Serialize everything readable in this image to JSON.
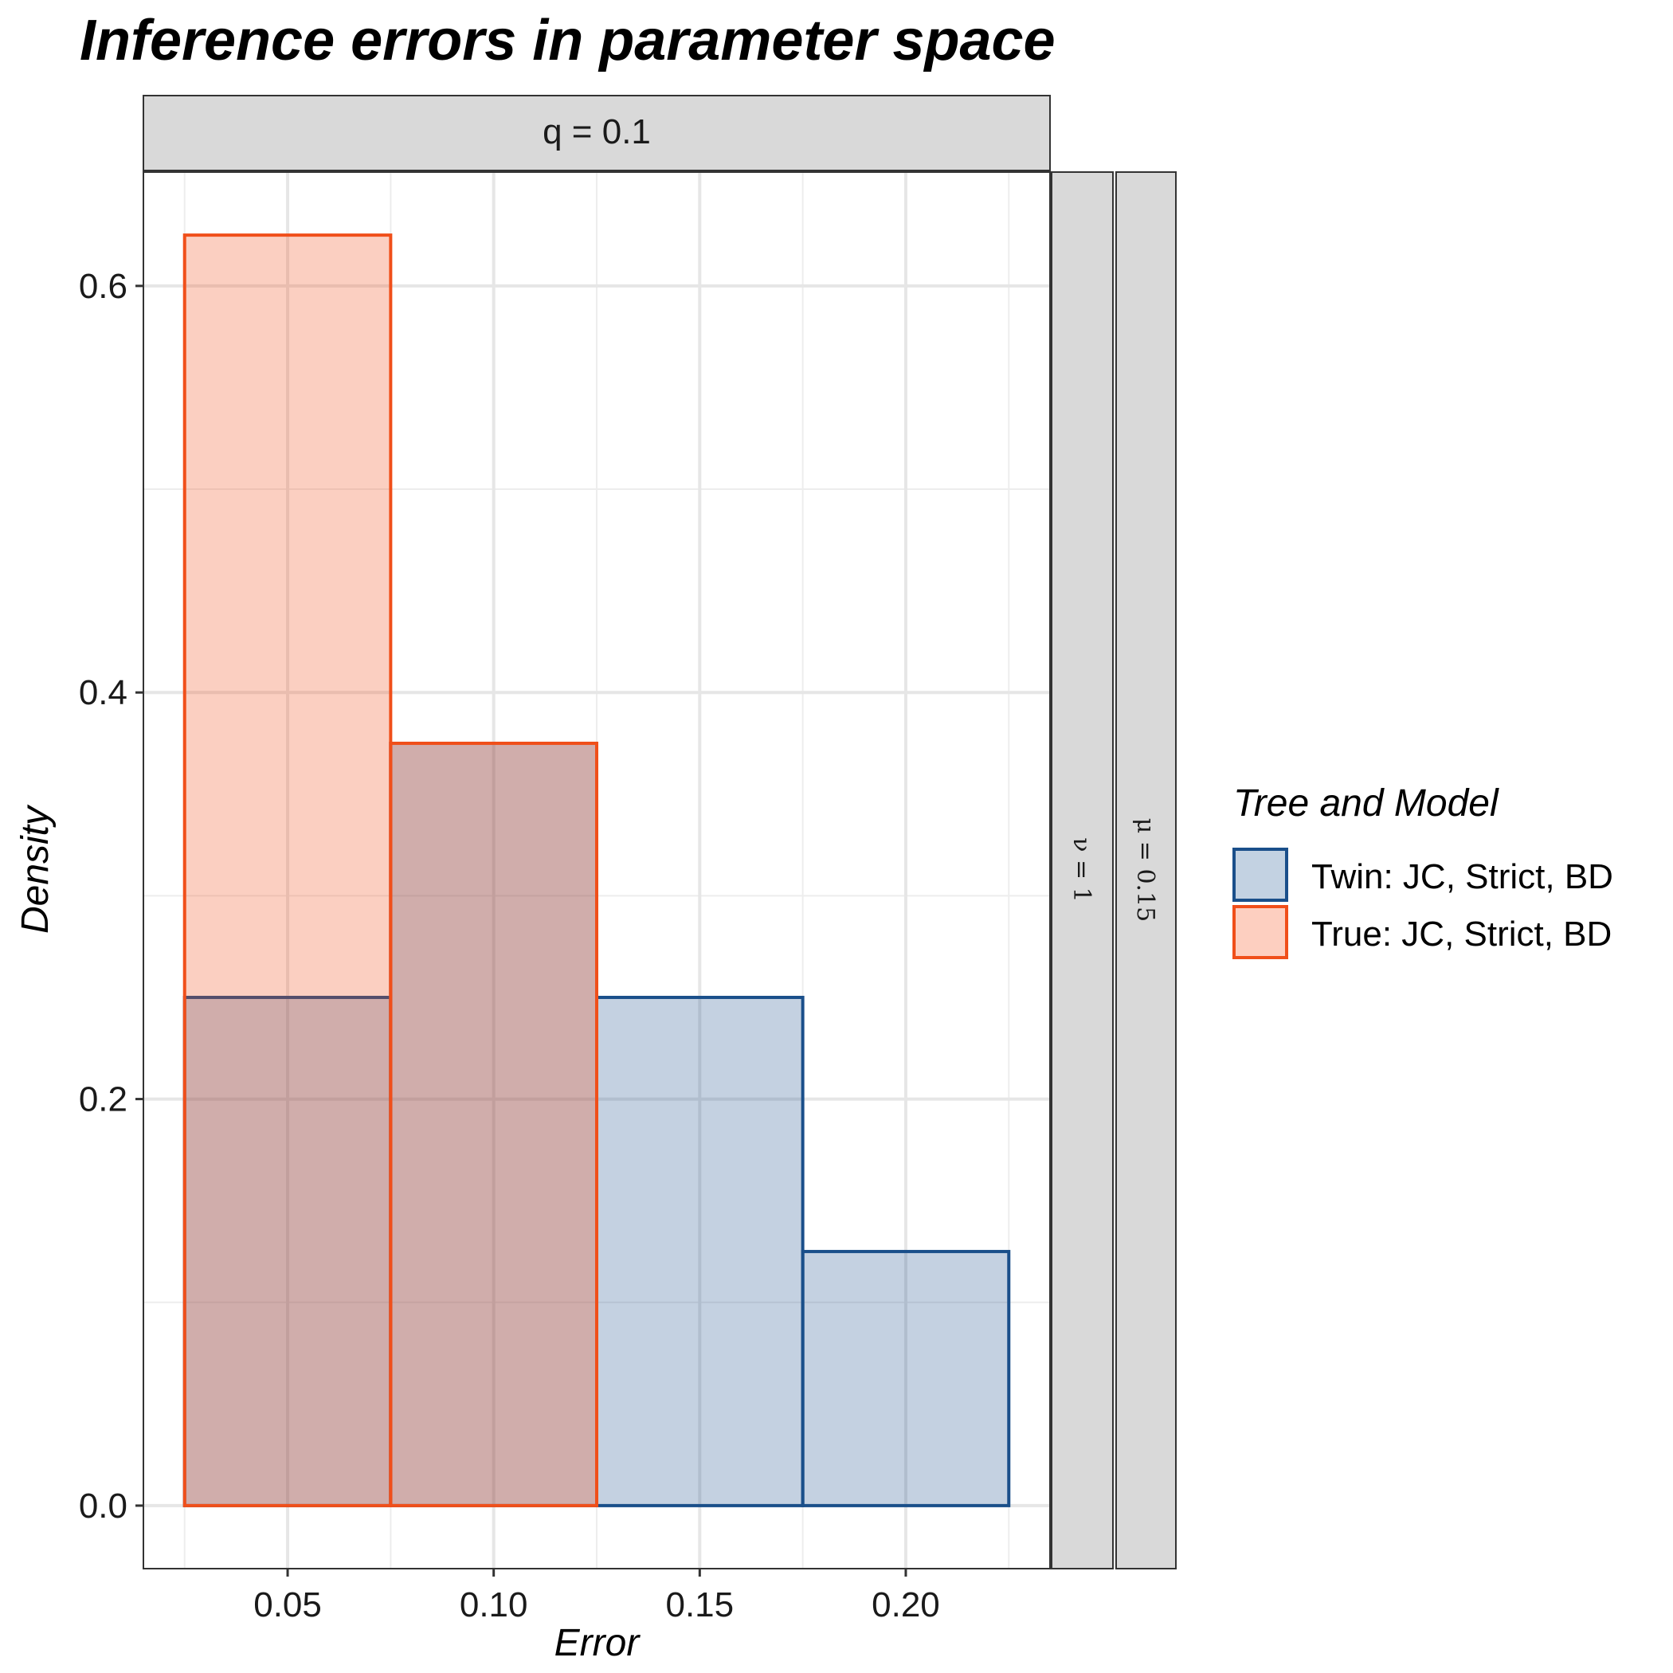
{
  "chart_data": {
    "type": "bar",
    "title": "Inference errors in parameter space",
    "xlabel": "Error",
    "ylabel": "Density",
    "facet": {
      "top": "q = 0.1",
      "right": [
        "ν = 1",
        "μ = 0.15"
      ]
    },
    "xlim": [
      0.015,
      0.235
    ],
    "ylim": [
      -0.031,
      0.656
    ],
    "x_ticks": [
      0.05,
      0.1,
      0.15,
      0.2
    ],
    "x_tick_labels": [
      "0.05",
      "0.10",
      "0.15",
      "0.20"
    ],
    "y_ticks": [
      0.0,
      0.2,
      0.4,
      0.6
    ],
    "y_tick_labels": [
      "0.0",
      "0.2",
      "0.4",
      "0.6"
    ],
    "bin_edges": [
      0.025,
      0.075,
      0.125,
      0.175,
      0.225
    ],
    "series": [
      {
        "name": "Twin: JC, Strict, BD",
        "color": "#1a4f8a",
        "fill": "#c3d2e2",
        "values": [
          0.25,
          0.375,
          0.25,
          0.125
        ]
      },
      {
        "name": "True: JC, Strict, BD",
        "color": "#f04f1a",
        "fill": "#fdcfc0",
        "values": [
          0.625,
          0.375,
          0.0,
          0.0
        ]
      }
    ],
    "overlap_fill": "#d2aea9",
    "grid": true,
    "legend": {
      "title": "Tree and Model",
      "position": "right"
    }
  }
}
